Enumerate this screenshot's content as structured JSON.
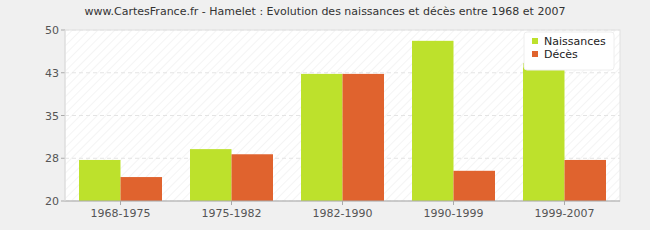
{
  "chart_data": {
    "type": "bar",
    "title": "www.CartesFrance.fr - Hamelet : Evolution des naissances et décès entre 1968 et 2007",
    "categories": [
      "1968-1975",
      "1975-1982",
      "1982-1990",
      "1990-1999",
      "1999-2007"
    ],
    "series": [
      {
        "name": "Naissances",
        "color": "#bde12c",
        "values": [
          27.2,
          29.1,
          42.3,
          48.1,
          44.2
        ]
      },
      {
        "name": "Décès",
        "color": "#e0632e",
        "values": [
          24.2,
          28.2,
          42.3,
          25.3,
          27.2
        ]
      }
    ],
    "ylim": [
      20,
      50
    ],
    "yticks": [
      20,
      {
        "value": 27.5,
        "label": "28"
      },
      35,
      {
        "value": 42.5,
        "label": "43"
      },
      50
    ],
    "grid": true,
    "legend": "top-right"
  }
}
